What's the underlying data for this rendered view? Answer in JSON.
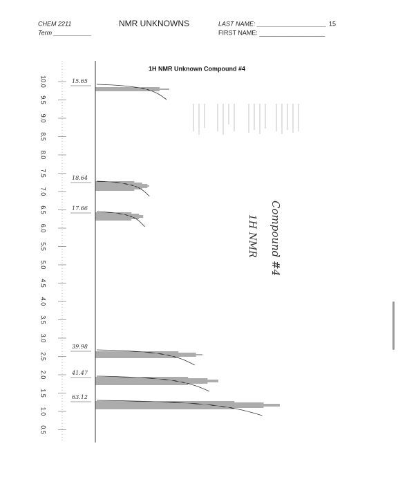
{
  "header": {
    "course": "CHEM 2211",
    "term": "Term ___________",
    "title": "NMR UNKNOWNS",
    "last_name": "LAST NAME: ____________________",
    "score": "15",
    "first_name": "FIRST NAME: ___________________"
  },
  "spectrum": {
    "title": "1H NMR Unknown Compound #4",
    "axis_labels": [
      "10.0",
      "9.5",
      "9.0",
      "8.5",
      "8.0",
      "7.5",
      "7.0",
      "6.5",
      "6.0",
      "5.5",
      "5.0",
      "4.5",
      "4.0",
      "3.5",
      "3.0",
      "2.5",
      "2.0",
      "1.5",
      "1.0",
      "0.5"
    ],
    "integrals": [
      "15.65",
      "18.64",
      "17.66",
      "39.98",
      "41.47",
      "63.12"
    ],
    "notes": [
      "Compound #4",
      "1H NMR"
    ]
  }
}
